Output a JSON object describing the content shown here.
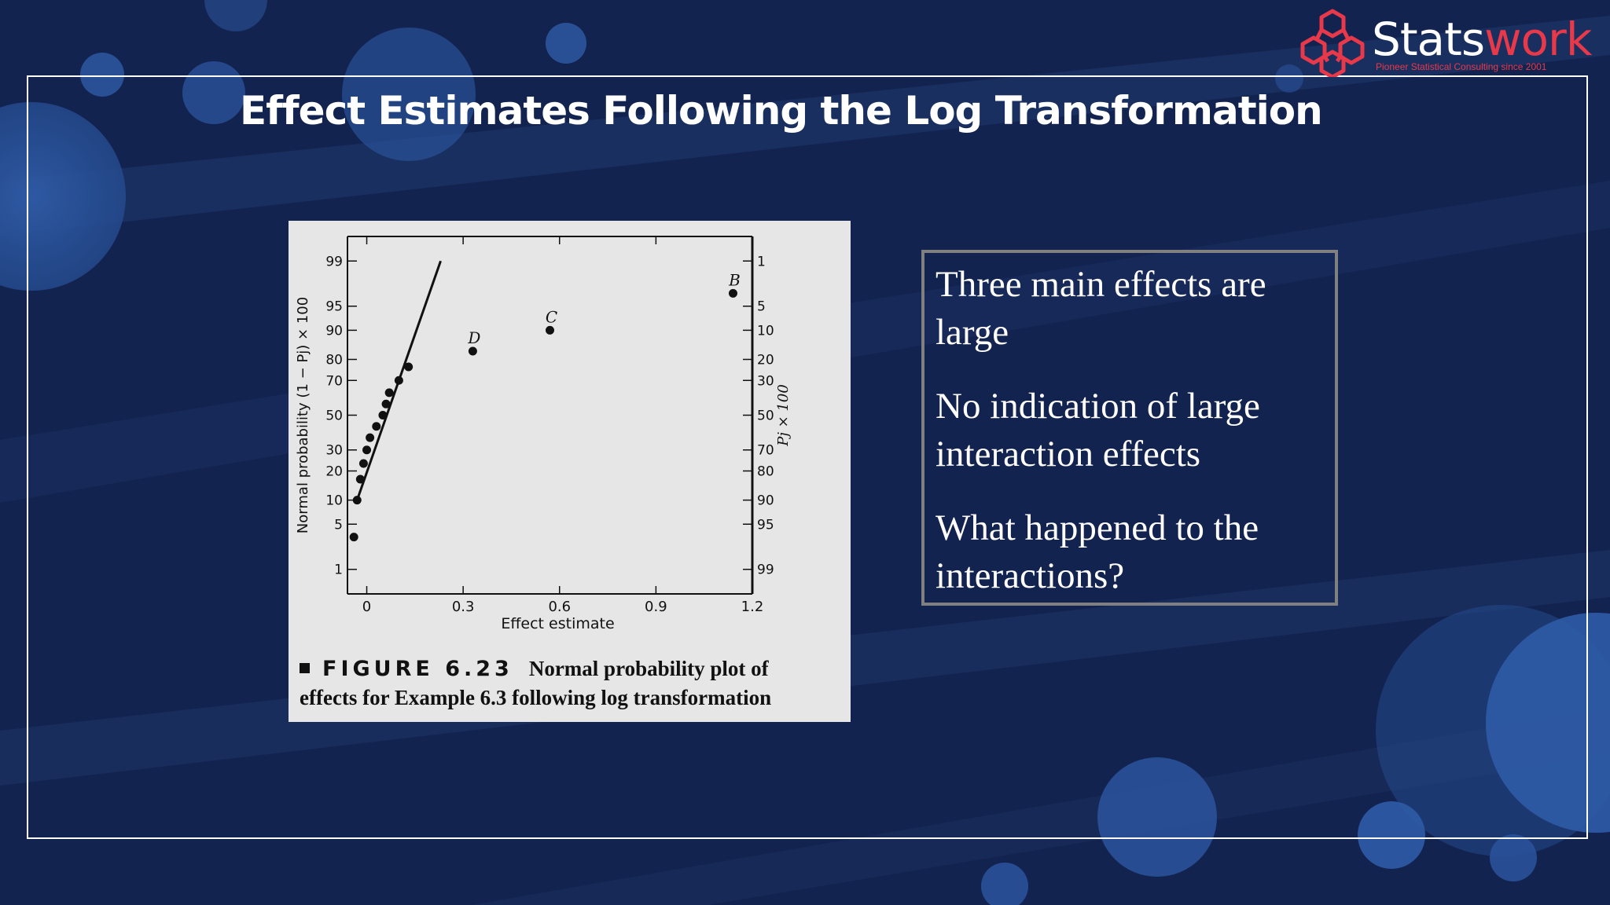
{
  "slide_title": "Effect Estimates Following the Log Transformation",
  "logo": {
    "name_part1": "Stats",
    "name_part2": "work",
    "tagline": "Pioneer Statistical Consulting since 2001",
    "colors": {
      "accent": "#e8394a",
      "text": "#ffffff"
    }
  },
  "figure": {
    "label": "FIGURE 6.23",
    "caption_line1": "Normal probability plot of",
    "caption_line2": "effects for Example 6.3 following log transformation"
  },
  "chart_data": {
    "type": "scatter",
    "xlabel": "Effect estimate",
    "ylabel_left": "Normal probability (1 − Pj) × 100",
    "ylabel_right": "Pj × 100",
    "xlim": [
      -0.06,
      1.2
    ],
    "x_ticks": [
      "0",
      "0.3",
      "0.6",
      "0.9",
      "1.2"
    ],
    "left_ticks": [
      "1",
      "5",
      "10",
      "20",
      "30",
      "50",
      "70",
      "80",
      "90",
      "95",
      "99"
    ],
    "right_ticks": [
      "99",
      "95",
      "90",
      "80",
      "70",
      "50",
      "30",
      "20",
      "10",
      "5",
      "1"
    ],
    "probability_scale": "normal",
    "grid": false,
    "points": [
      {
        "x": -0.04,
        "p": 96.7
      },
      {
        "x": -0.03,
        "p": 90.0
      },
      {
        "x": -0.02,
        "p": 83.3
      },
      {
        "x": -0.01,
        "p": 76.7
      },
      {
        "x": 0.0,
        "p": 70.0
      },
      {
        "x": 0.01,
        "p": 63.3
      },
      {
        "x": 0.03,
        "p": 56.7
      },
      {
        "x": 0.05,
        "p": 50.0
      },
      {
        "x": 0.06,
        "p": 43.3
      },
      {
        "x": 0.07,
        "p": 36.7
      },
      {
        "x": 0.1,
        "p": 30.0
      },
      {
        "x": 0.13,
        "p": 23.3
      },
      {
        "x": 0.33,
        "p": 16.7,
        "label": "D"
      },
      {
        "x": 0.57,
        "p": 10.0,
        "label": "C"
      },
      {
        "x": 1.14,
        "p": 3.3,
        "label": "B"
      }
    ],
    "fit_line": [
      {
        "x": -0.03,
        "p": 90.0
      },
      {
        "x": 0.23,
        "p": 1.0
      }
    ],
    "colors": {
      "background": "#e6e6e6",
      "marks": "#111111"
    }
  },
  "text_box": {
    "points": [
      "Three main effects are large",
      "No indication of large interaction effects",
      "What happened to the interactions?"
    ]
  }
}
